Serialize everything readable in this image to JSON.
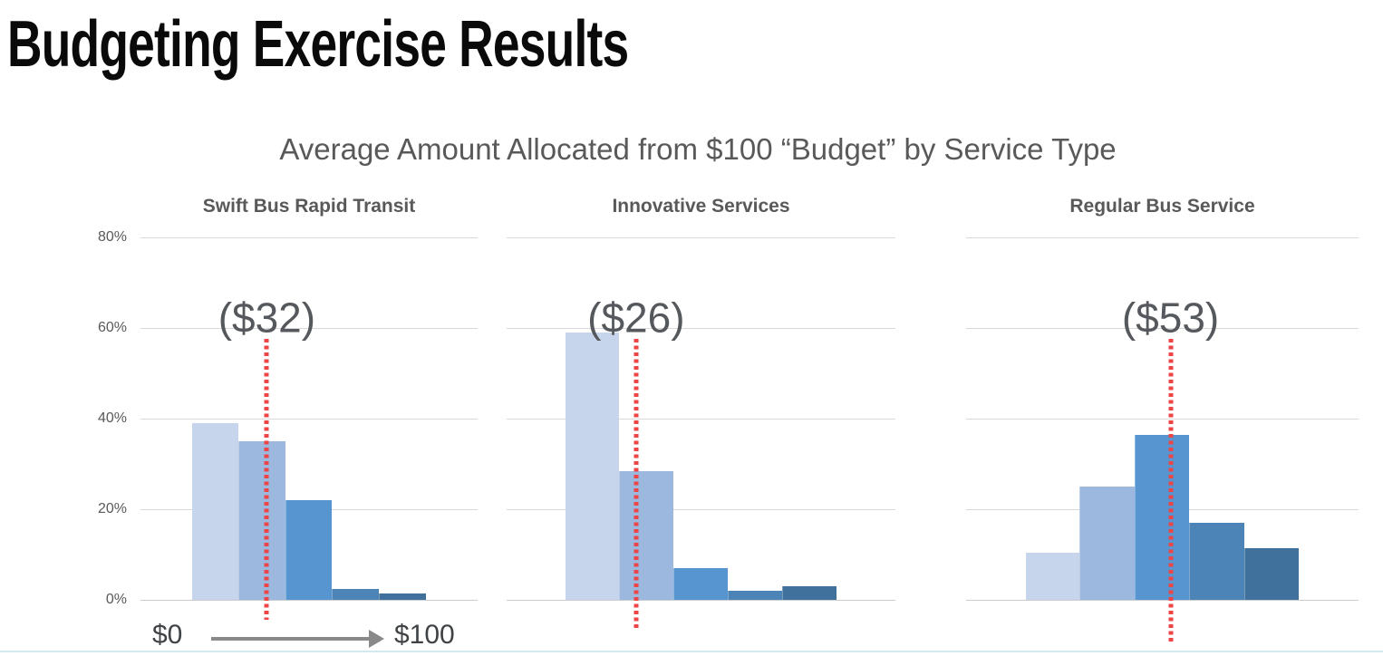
{
  "slide": {
    "title": "Budgeting Exercise Results"
  },
  "figure": {
    "title": "Average Amount Allocated from $100 “Budget” by Service Type",
    "y_tick_labels": [
      "80%",
      "60%",
      "40%",
      "20%",
      "0%"
    ],
    "x_axis": {
      "start_label": "$0",
      "end_label": "$100"
    },
    "bar_palette": [
      "#c6d4ec",
      "#9cb8df",
      "#5795d1",
      "#4c84b7",
      "#40709c"
    ],
    "mean_line_color": "#ed4446",
    "grid_color": "#d9d9d9"
  },
  "chart_data": [
    {
      "type": "bar",
      "title": "Swift Bus Rapid Transit",
      "x_range": [
        0,
        100
      ],
      "ylim": [
        0,
        80
      ],
      "grid_interval_pct": 20,
      "values": [
        39,
        35,
        22,
        2.5,
        1.5
      ],
      "mean_value": 32,
      "mean_label": "($32)"
    },
    {
      "type": "bar",
      "title": "Innovative Services",
      "x_range": [
        0,
        100
      ],
      "ylim": [
        0,
        80
      ],
      "grid_interval_pct": 20,
      "values": [
        59,
        28.5,
        7,
        2,
        3
      ],
      "mean_value": 26,
      "mean_label": "($26)"
    },
    {
      "type": "bar",
      "title": "Regular Bus Service",
      "x_range": [
        0,
        100
      ],
      "ylim": [
        0,
        80
      ],
      "grid_interval_pct": 20,
      "values": [
        10.5,
        25,
        36.5,
        17,
        11.5
      ],
      "mean_value": 53,
      "mean_label": "($53)"
    }
  ]
}
